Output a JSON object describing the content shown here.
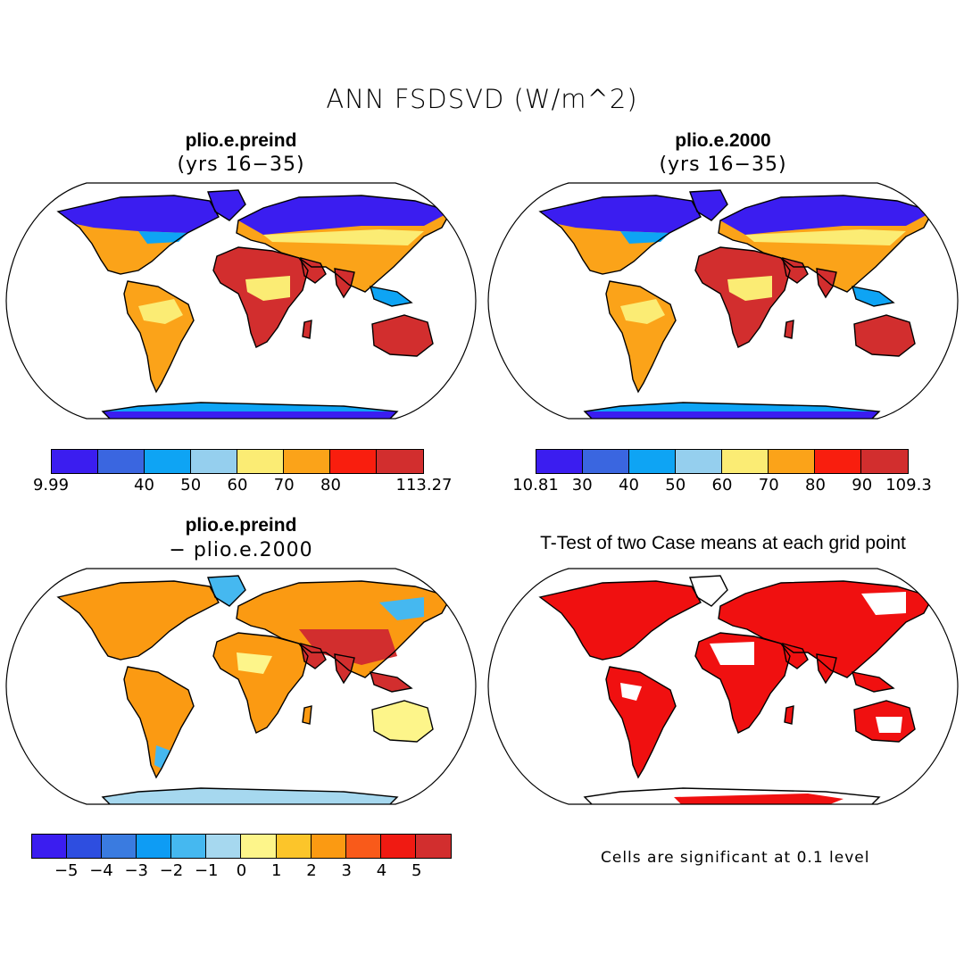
{
  "figure": {
    "title": "ANN FSDSVD (W/m^2)"
  },
  "panels": [
    {
      "id": "preind",
      "title": "plio.e.preind",
      "subtitle": "(yrs 16−35)",
      "colorbar": {
        "colors": [
          "#3b1df0",
          "#3a66e0",
          "#0ea4f4",
          "#95cfee",
          "#fbec74",
          "#fba319",
          "#f91e0e",
          "#d22e2e"
        ],
        "labels": [
          "9.99",
          "40",
          "50",
          "60",
          "70",
          "80",
          "113.27"
        ],
        "label_slots": [
          0,
          2,
          3,
          4,
          5,
          6,
          8
        ]
      }
    },
    {
      "id": "y2000",
      "title": "plio.e.2000",
      "subtitle": "(yrs 16−35)",
      "colorbar": {
        "colors": [
          "#3b1df0",
          "#3a66e0",
          "#0ea4f4",
          "#95cfee",
          "#fbec74",
          "#fba319",
          "#f91e0e",
          "#d22e2e"
        ],
        "labels": [
          "10.81",
          "30",
          "40",
          "50",
          "60",
          "70",
          "80",
          "90",
          "109.3"
        ],
        "label_slots": [
          0,
          1,
          2,
          3,
          4,
          5,
          6,
          7,
          8
        ]
      }
    },
    {
      "id": "diff",
      "title": "plio.e.preind",
      "subtitle": "− plio.e.2000",
      "colorbar": {
        "colors": [
          "#3b1df0",
          "#2e4ee0",
          "#3a7be0",
          "#0e9cf4",
          "#45b8f0",
          "#a6d8ef",
          "#fdf58a",
          "#fcc52a",
          "#fb9a12",
          "#f95a1a",
          "#f01a12",
          "#d22e2e"
        ],
        "labels": [
          "−5",
          "−4",
          "−3",
          "−2",
          "−1",
          "0",
          "1",
          "2",
          "3",
          "4",
          "5"
        ],
        "label_slots": [
          1,
          2,
          3,
          4,
          5,
          6,
          7,
          8,
          9,
          10,
          11
        ]
      }
    },
    {
      "id": "ttest",
      "title": "T-Test of two Case means at each grid point",
      "note": "Cells are significant at 0.1 level"
    }
  ],
  "map_styles": {
    "preind": {
      "ocean": "#ffffff",
      "land": "#fba319",
      "hot": "#d22e2e",
      "cold": "#3b1df0",
      "mid": "#0ea4f4",
      "warm": "#fbec74",
      "ice": "#0ea4f4"
    },
    "y2000": {
      "ocean": "#ffffff",
      "land": "#fba319",
      "hot": "#d22e2e",
      "cold": "#3b1df0",
      "mid": "#0ea4f4",
      "warm": "#fbec74",
      "ice": "#0ea4f4"
    },
    "diff": {
      "ocean": "#ffffff",
      "land": "#fb9a12",
      "hot": "#d22e2e",
      "cold": "#45b8f0",
      "mid": "#fcc52a",
      "warm": "#fdf58a",
      "ice": "#a6d8ef"
    },
    "ttest": {
      "ocean": "#ffffff",
      "land": "#f01010",
      "hot": "#f01010",
      "cold": "#ffffff",
      "mid": "#f01010",
      "warm": "#f01010",
      "ice": "#f01010"
    }
  }
}
